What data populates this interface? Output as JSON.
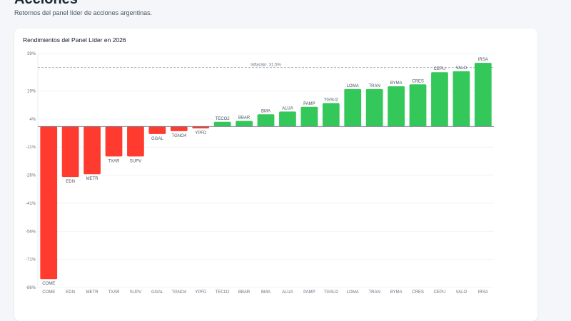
{
  "page": {
    "title": "Acciones",
    "subtitle": "Retornos del panel líder de acciones argentinas."
  },
  "chart_data": {
    "type": "bar",
    "title": "Rendimientos del Panel Líder en 2026",
    "categories": [
      "COME",
      "EDN",
      "METR",
      "TXAR",
      "SUPV",
      "GGAL",
      "TGNO4",
      "YPFD",
      "TECO2",
      "BBAR",
      "BMA",
      "ALUA",
      "PAMP",
      "TGSU2",
      "LOMA",
      "TRAN",
      "BYMA",
      "CRES",
      "CEPU",
      "VALO",
      "IRSA"
    ],
    "values": [
      -81.5,
      -27,
      -25.5,
      -16,
      -16,
      -4,
      -2.5,
      -1,
      2.5,
      3,
      6.5,
      8,
      10.5,
      12.5,
      20,
      20,
      21.5,
      22.5,
      29,
      29.5,
      34
    ],
    "yticks": [
      "39%",
      "19%",
      "4%",
      "-11%",
      "-26%",
      "-41%",
      "-56%",
      "-71%",
      "-86%"
    ],
    "ylim": [
      -86,
      39
    ],
    "reference_line": {
      "value": 31.5,
      "label": "Inflación: 31.5%"
    },
    "colors": {
      "positive": "#34c759",
      "negative": "#ff3b30"
    },
    "grid": true
  }
}
